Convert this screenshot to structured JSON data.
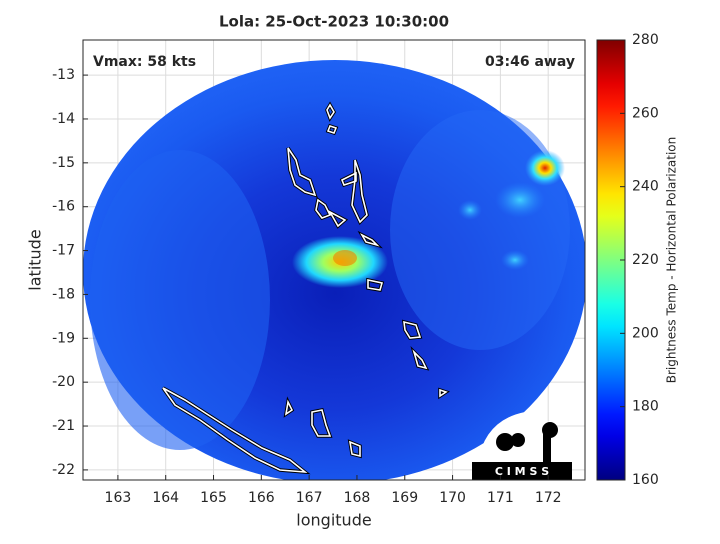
{
  "chart_data": {
    "type": "swath-map",
    "title": "Lola: 25-Oct-2023 10:30:00",
    "xlabel": "longitude",
    "ylabel": "latitude",
    "annotations": [
      "Vmax: 58 kts",
      "03:46 away"
    ],
    "logo": "C I M S S",
    "xlim": [
      162.27,
      172.77
    ],
    "ylim": [
      -22.23,
      -12.2
    ],
    "xticks": [
      163,
      164,
      165,
      166,
      167,
      168,
      169,
      170,
      171,
      172
    ],
    "yticks": [
      -13,
      -14,
      -15,
      -16,
      -17,
      -18,
      -19,
      -20,
      -21,
      -22
    ],
    "grid": true,
    "colorbar": {
      "label": "Brightness Temp - Horizontal Polarization",
      "colormap": "jet",
      "clim": [
        160,
        280
      ],
      "ticks": [
        160,
        180,
        200,
        220,
        240,
        260,
        280
      ]
    }
  }
}
